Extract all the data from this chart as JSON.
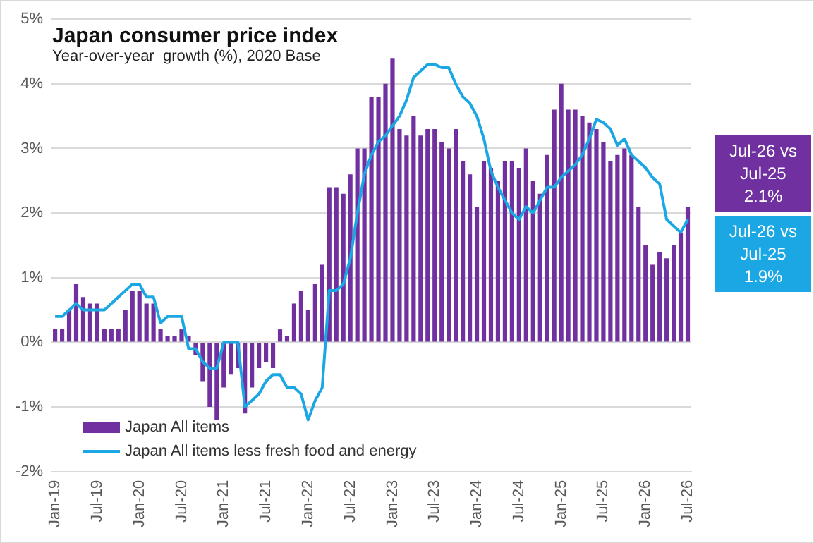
{
  "chart_data": {
    "type": "bar",
    "title": "Japan consumer price index",
    "subtitle": "Year-over-year  growth (%), 2020 Base",
    "categories": [
      "Jan-19",
      null,
      null,
      null,
      null,
      null,
      "Jul-19",
      null,
      null,
      null,
      null,
      null,
      "Jan-20",
      null,
      null,
      null,
      null,
      null,
      "Jul-20",
      null,
      null,
      null,
      null,
      null,
      "Jan-21",
      null,
      null,
      null,
      null,
      null,
      "Jul-21",
      null,
      null,
      null,
      null,
      null,
      "Jan-22",
      null,
      null,
      null,
      null,
      null,
      "Jul-22",
      null,
      null,
      null,
      null,
      null,
      "Jan-23",
      null,
      null,
      null,
      null,
      null,
      "Jul-23",
      null,
      null,
      null,
      null,
      null,
      "Jan-24",
      null,
      null,
      null,
      null,
      null,
      "Jul-24",
      null,
      null,
      null,
      null,
      null,
      "Jan-25",
      null,
      null,
      null,
      null,
      null,
      "Jul-25",
      null,
      null,
      null,
      null,
      null,
      "Jan-26",
      null,
      null,
      null,
      null,
      null,
      "Jul-26"
    ],
    "series": [
      {
        "name": "Japan All items",
        "color": "#7030a0",
        "values": [
          0.2,
          0.2,
          0.5,
          0.9,
          0.7,
          0.6,
          0.6,
          0.2,
          0.2,
          0.2,
          0.5,
          0.8,
          0.8,
          0.6,
          0.6,
          0.2,
          0.1,
          0.1,
          0.2,
          0.1,
          -0.2,
          -0.6,
          -1.0,
          -1.2,
          -0.7,
          -0.5,
          -0.4,
          -1.1,
          -0.7,
          -0.4,
          -0.3,
          -0.4,
          0.2,
          0.1,
          0.6,
          0.8,
          0.5,
          0.9,
          1.2,
          2.4,
          2.4,
          2.3,
          2.6,
          3.0,
          3.0,
          3.8,
          3.8,
          4.0,
          4.4,
          3.3,
          3.2,
          3.5,
          3.2,
          3.3,
          3.3,
          3.1,
          3.0,
          3.3,
          2.8,
          2.6,
          2.1,
          2.8,
          2.7,
          2.5,
          2.8,
          2.8,
          2.7,
          3.0,
          2.5,
          2.3,
          2.9,
          3.6,
          4.0,
          3.6,
          3.6,
          3.5,
          3.4,
          3.3,
          3.1,
          2.8,
          2.9,
          3.0,
          2.9,
          2.1,
          1.5,
          1.2,
          1.4,
          1.3,
          1.5,
          1.7,
          2.1
        ]
      },
      {
        "name": "Japan All items less fresh food and energy",
        "type": "line",
        "color": "#1aa7e4",
        "values": [
          0.4,
          0.4,
          0.5,
          0.6,
          0.5,
          0.5,
          0.5,
          0.5,
          0.6,
          0.7,
          0.8,
          0.9,
          0.9,
          0.7,
          0.7,
          0.3,
          0.4,
          0.4,
          0.4,
          -0.1,
          -0.1,
          -0.3,
          -0.4,
          -0.4,
          0.0,
          0.0,
          0.0,
          -1.0,
          -0.9,
          -0.8,
          -0.6,
          -0.5,
          -0.5,
          -0.7,
          -0.7,
          -0.8,
          -1.2,
          -0.9,
          -0.7,
          0.8,
          0.8,
          0.9,
          1.3,
          2.0,
          2.6,
          2.9,
          3.1,
          3.2,
          3.35,
          3.5,
          3.75,
          4.1,
          4.2,
          4.3,
          4.3,
          4.25,
          4.25,
          4.0,
          3.8,
          3.7,
          3.5,
          3.15,
          2.65,
          2.4,
          2.2,
          2.0,
          1.9,
          2.1,
          2.0,
          2.2,
          2.4,
          2.4,
          2.55,
          2.65,
          2.75,
          2.9,
          3.15,
          3.45,
          3.4,
          3.3,
          3.05,
          3.15,
          2.9,
          2.8,
          2.7,
          2.55,
          2.45,
          1.9,
          1.8,
          1.7,
          1.9
        ]
      }
    ],
    "ylim": [
      -2,
      5
    ],
    "yticks": [
      {
        "value": -2,
        "label": "-2%"
      },
      {
        "value": -1,
        "label": "-1%"
      },
      {
        "value": 0,
        "label": "0%"
      },
      {
        "value": 1,
        "label": "1%"
      },
      {
        "value": 2,
        "label": "2%"
      },
      {
        "value": 3,
        "label": "3%"
      },
      {
        "value": 4,
        "label": "4%"
      },
      {
        "value": 5,
        "label": "5%"
      }
    ],
    "grid": "y",
    "legend": "bottom left",
    "marker": "none",
    "annotations": [
      "Jul-26 vs Jul-25 2.1%",
      "Jul-26 vs Jul-25 1.9%"
    ]
  }
}
